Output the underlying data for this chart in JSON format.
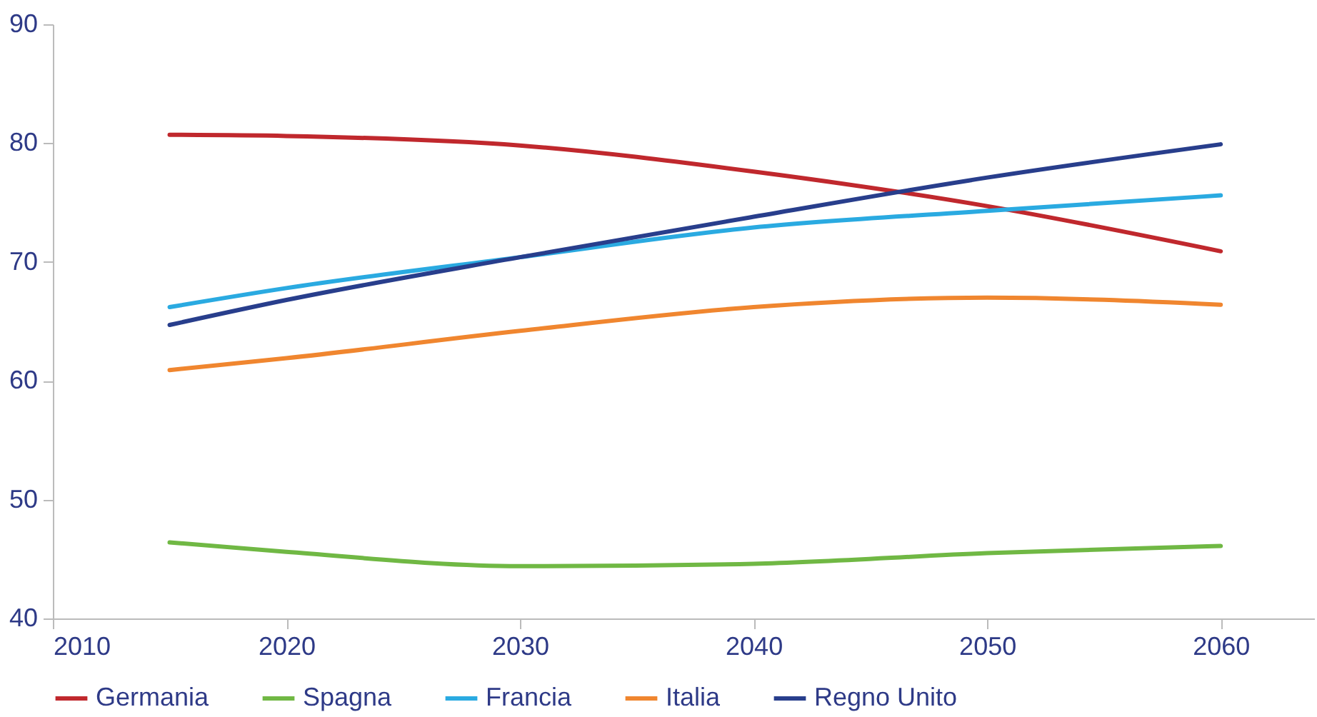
{
  "chart_data": {
    "type": "line",
    "x": [
      2015,
      2020,
      2030,
      2040,
      2050,
      2060
    ],
    "series": [
      {
        "name": "Germania",
        "color": "#c0282d",
        "values": [
          80.7,
          80.6,
          79.8,
          77.6,
          74.7,
          70.9
        ]
      },
      {
        "name": "Spagna",
        "color": "#70b844",
        "values": [
          46.4,
          45.6,
          44.4,
          44.6,
          45.5,
          46.1
        ]
      },
      {
        "name": "Francia",
        "color": "#2aaae1",
        "values": [
          66.2,
          67.8,
          70.4,
          72.9,
          74.3,
          75.6
        ]
      },
      {
        "name": "Italia",
        "color": "#f0862f",
        "values": [
          60.9,
          61.9,
          64.2,
          66.2,
          67.0,
          66.4
        ]
      },
      {
        "name": "Regno Unito",
        "color": "#283e8c",
        "values": [
          64.7,
          66.8,
          70.4,
          73.8,
          77.1,
          79.9
        ]
      }
    ],
    "xlim": [
      2010,
      2064
    ],
    "xticks": [
      2010,
      2020,
      2030,
      2040,
      2050,
      2060
    ],
    "ylim": [
      40,
      90
    ],
    "yticks": [
      40,
      50,
      60,
      70,
      80,
      90
    ],
    "grid": false,
    "legend": "bottom",
    "marker": "none",
    "line_style": "solid"
  }
}
